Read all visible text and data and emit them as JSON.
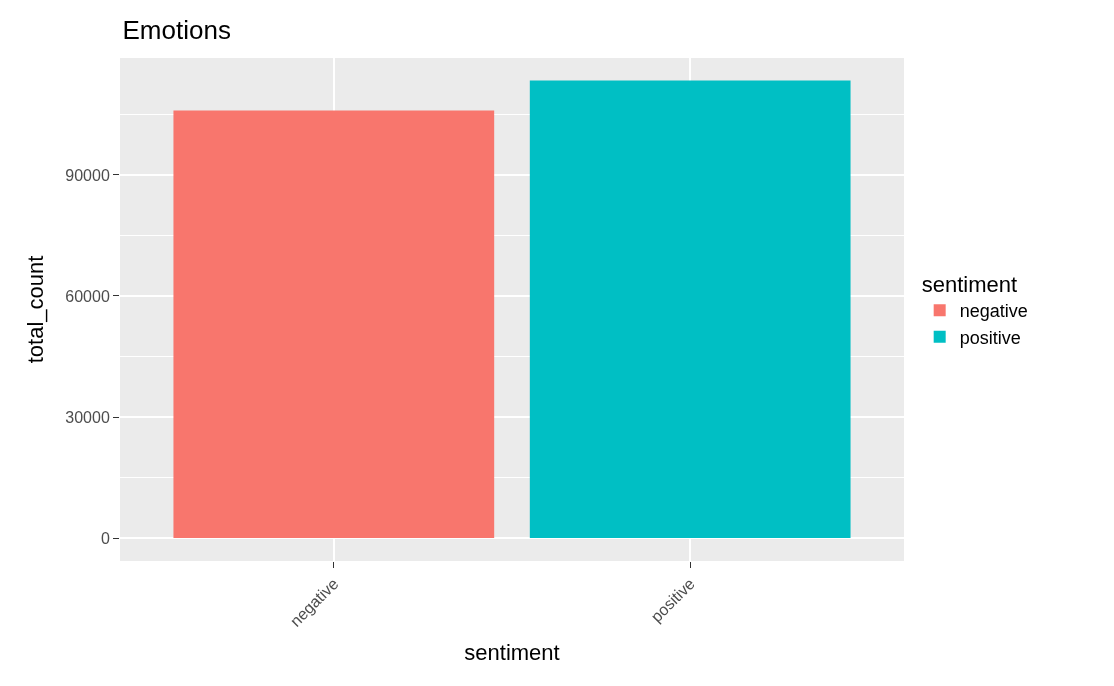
{
  "chart_data": {
    "type": "bar",
    "title": "Emotions",
    "xlabel": "sentiment",
    "ylabel": "total_count",
    "legend_title": "sentiment",
    "categories": [
      "negative",
      "positive"
    ],
    "series": [
      {
        "name": "negative",
        "color": "#f8766d",
        "values": [
          106000,
          null
        ]
      },
      {
        "name": "positive",
        "color": "#00bfc4",
        "values": [
          null,
          113400
        ]
      }
    ],
    "ylim": [
      -5700,
      119000
    ],
    "yticks": [
      0,
      30000,
      60000,
      90000
    ],
    "grid": true,
    "legend": "right"
  }
}
